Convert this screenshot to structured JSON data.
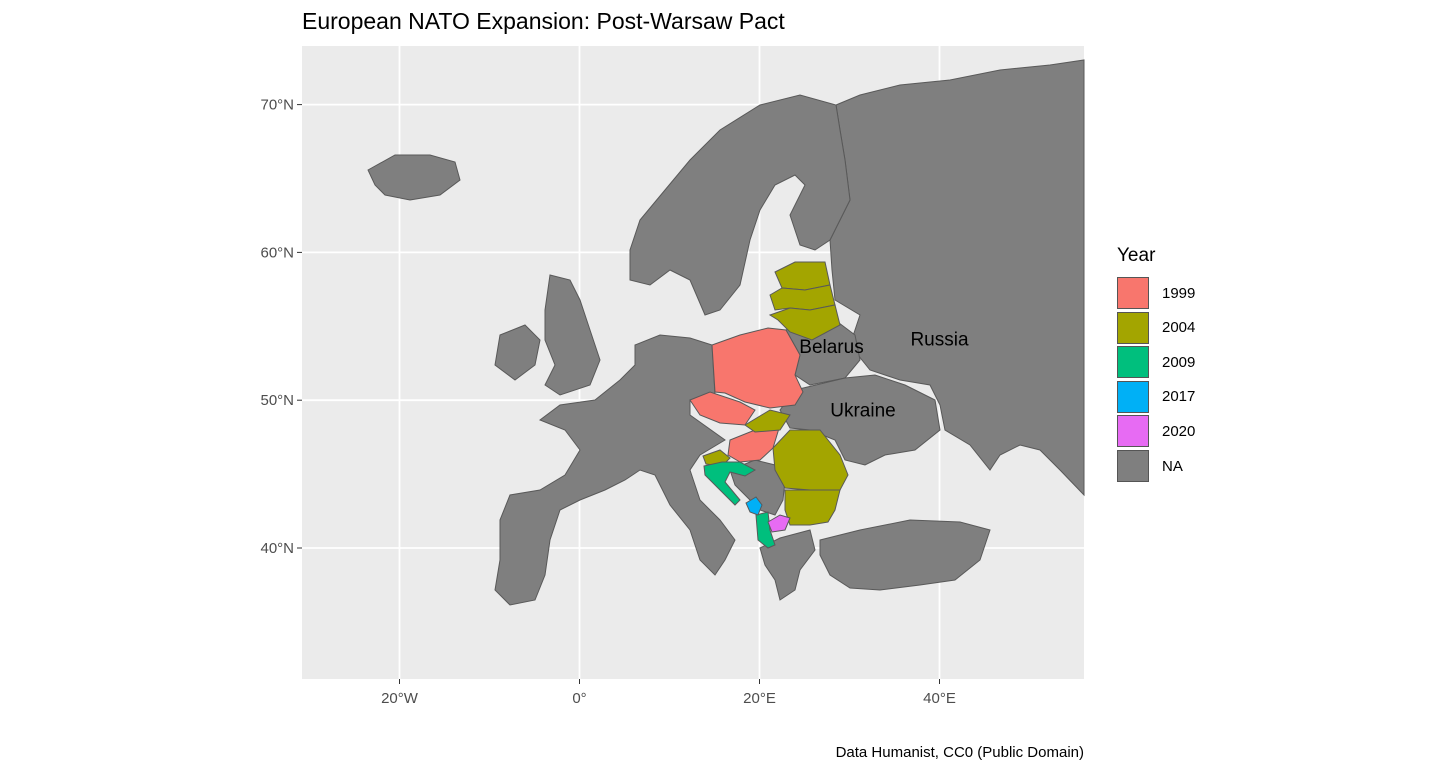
{
  "title": "European NATO Expansion: Post-Warsaw Pact",
  "caption": "Data Humanist, CC0 (Public Domain)",
  "legend": {
    "title": "Year",
    "items": [
      {
        "label": "1999",
        "color": "#F8766D"
      },
      {
        "label": "2004",
        "color": "#A3A500"
      },
      {
        "label": "2009",
        "color": "#00BF7D"
      },
      {
        "label": "2017",
        "color": "#00B0F6"
      },
      {
        "label": "2020",
        "color": "#E76BF3"
      },
      {
        "label": "NA",
        "color": "#7F7F7F"
      }
    ]
  },
  "colors": {
    "panel": "#EBEBEB",
    "grid": "#FFFFFF",
    "land_na": "#7F7F7F",
    "border": "#595959",
    "nato_1999": "#F8766D",
    "nato_2004": "#A3A500",
    "nato_2009": "#00BF7D",
    "nato_2017": "#00B0F6",
    "nato_2020": "#E76BF3"
  },
  "axes": {
    "x_ticks": [
      {
        "value": -20,
        "label": "20°W"
      },
      {
        "value": 0,
        "label": "0°"
      },
      {
        "value": 20,
        "label": "20°E"
      },
      {
        "value": 40,
        "label": "40°E"
      }
    ],
    "y_ticks": [
      {
        "value": 40,
        "label": "40°N"
      },
      {
        "value": 50,
        "label": "50°N"
      },
      {
        "value": 60,
        "label": "60°N"
      },
      {
        "value": 70,
        "label": "70°N"
      }
    ],
    "xlim": [
      -31,
      56
    ],
    "ylim": [
      31,
      74
    ]
  },
  "labels": [
    {
      "text": "Belarus",
      "lon": 28,
      "lat": 53.2
    },
    {
      "text": "Ukraine",
      "lon": 31.5,
      "lat": 48.9
    },
    {
      "text": "Russia",
      "lon": 40,
      "lat": 53.7
    }
  ],
  "countries": [
    {
      "name": "Poland",
      "year": "1999"
    },
    {
      "name": "Czech Republic",
      "year": "1999"
    },
    {
      "name": "Hungary",
      "year": "1999"
    },
    {
      "name": "Estonia",
      "year": "2004"
    },
    {
      "name": "Latvia",
      "year": "2004"
    },
    {
      "name": "Lithuania",
      "year": "2004"
    },
    {
      "name": "Slovakia",
      "year": "2004"
    },
    {
      "name": "Slovenia",
      "year": "2004"
    },
    {
      "name": "Romania",
      "year": "2004"
    },
    {
      "name": "Bulgaria",
      "year": "2004"
    },
    {
      "name": "Croatia",
      "year": "2009"
    },
    {
      "name": "Albania",
      "year": "2009"
    },
    {
      "name": "Montenegro",
      "year": "2017"
    },
    {
      "name": "North Macedonia",
      "year": "2020"
    }
  ]
}
